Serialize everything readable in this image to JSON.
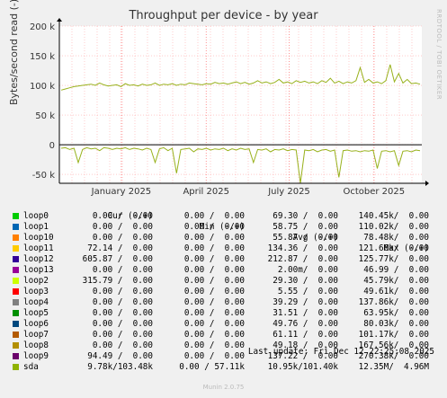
{
  "chart_data": {
    "type": "line",
    "title": "Throughput per device - by year",
    "ylabel": "Bytes/second read (-) / write (+)",
    "ylim": [
      -65000,
      200000
    ],
    "yticks": [
      {
        "value": 200000,
        "label": "200 k"
      },
      {
        "value": 150000,
        "label": "150 k"
      },
      {
        "value": 100000,
        "label": "100 k"
      },
      {
        "value": 50000,
        "label": "50 k"
      },
      {
        "value": 0,
        "label": "0"
      },
      {
        "value": -50000,
        "label": "-50 k"
      }
    ],
    "xticks": [
      "January 2025",
      "April 2025",
      "July 2025",
      "October 2025"
    ],
    "series": [
      {
        "name": "sda",
        "color": "#98b11b",
        "write": [
          92000,
          94000,
          96000,
          98000,
          99000,
          100000,
          101000,
          102000,
          100000,
          104000,
          101000,
          99000,
          100000,
          101000,
          98000,
          103000,
          100000,
          101000,
          99000,
          102000,
          100000,
          101000,
          104000,
          100000,
          102000,
          101000,
          103000,
          100000,
          102000,
          101000,
          104000,
          103000,
          102000,
          101000,
          103000,
          102000,
          105000,
          103000,
          104000,
          102000,
          104000,
          106000,
          103000,
          105000,
          102000,
          104000,
          108000,
          104000,
          106000,
          103000,
          105000,
          110000,
          104000,
          106000,
          103000,
          108000,
          105000,
          107000,
          104000,
          106000,
          103000,
          108000,
          105000,
          112000,
          104000,
          107000,
          103000,
          106000,
          104000,
          108000,
          130000,
          105000,
          110000,
          104000,
          106000,
          103000,
          108000,
          135000,
          106000,
          120000,
          104000,
          110000,
          103000,
          104000,
          102000
        ],
        "read": [
          -6000,
          -5000,
          -8000,
          -6000,
          -30000,
          -8000,
          -5000,
          -7000,
          -6000,
          -10000,
          -5000,
          -6000,
          -8000,
          -6000,
          -7000,
          -5000,
          -8000,
          -6000,
          -7000,
          -9000,
          -6000,
          -8000,
          -30000,
          -7000,
          -5000,
          -10000,
          -6000,
          -48000,
          -8000,
          -7000,
          -6000,
          -12000,
          -7000,
          -8000,
          -6000,
          -9000,
          -7000,
          -8000,
          -6000,
          -10000,
          -7000,
          -9000,
          -6000,
          -8000,
          -7000,
          -30000,
          -8000,
          -9000,
          -7000,
          -12000,
          -8000,
          -9000,
          -7000,
          -10000,
          -8000,
          -9000,
          -65000,
          -9000,
          -10000,
          -8000,
          -12000,
          -9000,
          -8000,
          -11000,
          -9000,
          -55000,
          -10000,
          -9000,
          -11000,
          -10000,
          -12000,
          -10000,
          -11000,
          -9000,
          -40000,
          -11000,
          -10000,
          -12000,
          -10000,
          -35000,
          -11000,
          -10000,
          -12000,
          -9000,
          -10000
        ]
      },
      {
        "name": "loop2",
        "color": "#ccff00",
        "write": [],
        "read": []
      }
    ],
    "legend": {
      "headers": [
        "Cur (-/+)",
        "Min (-/+)",
        "Avg (-/+)",
        "Max (-/+)"
      ],
      "rows": [
        {
          "name": "loop0",
          "color": "#00cc00",
          "cur": "0.00 /  0.00",
          "min": "0.00 /  0.00",
          "avg": "69.30 /  0.00",
          "max": "140.45k/  0.00"
        },
        {
          "name": "loop1",
          "color": "#0066b3",
          "cur": "0.00 /  0.00",
          "min": "0.00 /  0.00",
          "avg": "58.75 /  0.00",
          "max": "110.02k/  0.00"
        },
        {
          "name": "loop10",
          "color": "#ff8000",
          "cur": "0.00 /  0.00",
          "min": "0.00 /  0.00",
          "avg": "55.87 /  0.00",
          "max": "78.48k/  0.00"
        },
        {
          "name": "loop11",
          "color": "#ffcc00",
          "cur": "72.14 /  0.00",
          "min": "0.00 /  0.00",
          "avg": "134.36 /  0.00",
          "max": "121.66k/  0.00"
        },
        {
          "name": "loop12",
          "color": "#330099",
          "cur": "605.87 /  0.00",
          "min": "0.00 /  0.00",
          "avg": "212.87 /  0.00",
          "max": "125.77k/  0.00"
        },
        {
          "name": "loop13",
          "color": "#990099",
          "cur": "0.00 /  0.00",
          "min": "0.00 /  0.00",
          "avg": "2.00m/  0.00",
          "max": "46.99 /  0.00"
        },
        {
          "name": "loop2",
          "color": "#ccff00",
          "cur": "315.79 /  0.00",
          "min": "0.00 /  0.00",
          "avg": "29.30 /  0.00",
          "max": "45.79k/  0.00"
        },
        {
          "name": "loop3",
          "color": "#ff0000",
          "cur": "0.00 /  0.00",
          "min": "0.00 /  0.00",
          "avg": "5.55 /  0.00",
          "max": "49.61k/  0.00"
        },
        {
          "name": "loop4",
          "color": "#808080",
          "cur": "0.00 /  0.00",
          "min": "0.00 /  0.00",
          "avg": "39.29 /  0.00",
          "max": "137.86k/  0.00"
        },
        {
          "name": "loop5",
          "color": "#008f00",
          "cur": "0.00 /  0.00",
          "min": "0.00 /  0.00",
          "avg": "31.51 /  0.00",
          "max": "63.95k/  0.00"
        },
        {
          "name": "loop6",
          "color": "#00487d",
          "cur": "0.00 /  0.00",
          "min": "0.00 /  0.00",
          "avg": "49.76 /  0.00",
          "max": "80.03k/  0.00"
        },
        {
          "name": "loop7",
          "color": "#b35a00",
          "cur": "0.00 /  0.00",
          "min": "0.00 /  0.00",
          "avg": "61.11 /  0.00",
          "max": "101.17k/  0.00"
        },
        {
          "name": "loop8",
          "color": "#b38f00",
          "cur": "0.00 /  0.00",
          "min": "0.00 /  0.00",
          "avg": "49.18 /  0.00",
          "max": "167.56k/  0.00"
        },
        {
          "name": "loop9",
          "color": "#6b006b",
          "cur": "94.49 /  0.00",
          "min": "0.00 /  0.00",
          "avg": "137.22 /  0.00",
          "max": "270.38k/  0.00"
        },
        {
          "name": "sda",
          "color": "#8fb300",
          "cur": "9.78k/103.48k",
          "min": "0.00 / 57.11k",
          "avg": "10.95k/101.40k",
          "max": "12.35M/  4.96M"
        }
      ]
    },
    "grid": true
  },
  "side_label": "RRDTOOL / TOBI OETIKER",
  "footer": "Last update: Fri Dec 12 22:25:08 2025",
  "munin_version": "Munin 2.0.75"
}
